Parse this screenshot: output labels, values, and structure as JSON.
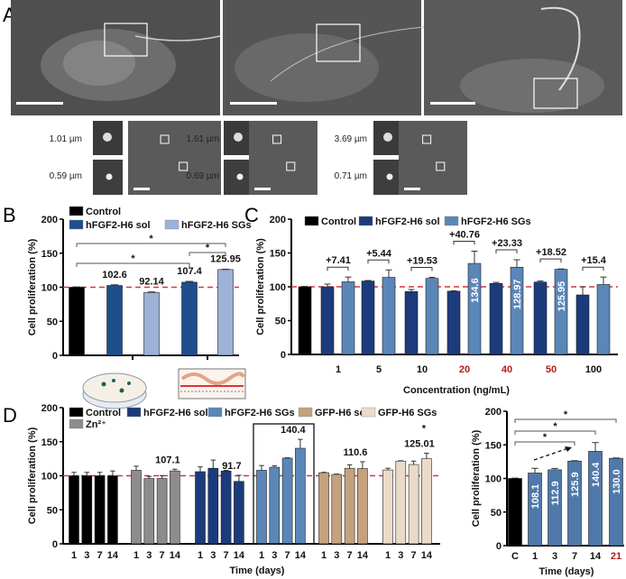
{
  "panel_labels": {
    "a": "A",
    "b": "B",
    "c": "C",
    "d": "D"
  },
  "panel_a": {
    "insets": [
      {
        "top": "1.01 µm",
        "bottom": "0.59 µm"
      },
      {
        "top": "1.61 µm",
        "bottom": "0.69 µm"
      },
      {
        "top": "3.69 µm",
        "bottom": "0.71 µm"
      }
    ]
  },
  "colors": {
    "reference_line": "#d9363e",
    "highlight_label": "#b01c1c"
  },
  "chart_data": [
    {
      "type": "bar",
      "panel": "B",
      "title": "",
      "xlabel": "",
      "ylabel": "Cell proliferation (%)",
      "ylim": [
        0,
        200
      ],
      "yticks": [
        "0",
        "50",
        "100",
        "150",
        "200"
      ],
      "reference_line": 100,
      "legend": [
        {
          "label": "Control",
          "color": "#000000"
        },
        {
          "label": "hFGF2-H6 sol",
          "color": "#1f4e8c"
        },
        {
          "label": "hFGF2-H6 SGs",
          "color": "#9db2d6"
        }
      ],
      "bars": [
        {
          "series": "Control",
          "value": 100,
          "error": 0.5,
          "label": ""
        },
        {
          "series": "hFGF2-H6 sol",
          "value": 102.6,
          "error": 1,
          "label": "102.6"
        },
        {
          "series": "hFGF2-H6 SGs",
          "value": 92.14,
          "error": 1,
          "label": "92.14"
        },
        {
          "series": "hFGF2-H6 sol",
          "value": 107.4,
          "error": 1.2,
          "label": "107.4"
        },
        {
          "series": "hFGF2-H6 SGs",
          "value": 125.95,
          "error": 0.5,
          "label": "125.95"
        }
      ],
      "categories": [],
      "significance": [
        {
          "from": 0,
          "to": 3,
          "text": "*"
        },
        {
          "from": 0,
          "to": 4,
          "text": "*"
        },
        {
          "from": 3,
          "to": 4,
          "text": "*"
        }
      ]
    },
    {
      "type": "bar",
      "panel": "C",
      "xlabel": "Concentration (ng/mL)",
      "ylabel": "Cell proliferation (%)",
      "ylim": [
        0,
        200
      ],
      "yticks": [
        "0",
        "50",
        "100",
        "150",
        "200"
      ],
      "reference_line": 100,
      "legend": [
        {
          "label": "Control",
          "color": "#000000"
        },
        {
          "label": "hFGF2-H6 sol",
          "color": "#1b3b7c"
        },
        {
          "label": "hFGF2-H6 SGs",
          "color": "#5b86b8"
        }
      ],
      "categories": [
        {
          "label": "1",
          "highlight": false
        },
        {
          "label": "5",
          "highlight": false
        },
        {
          "label": "10",
          "highlight": false
        },
        {
          "label": "20",
          "highlight": true
        },
        {
          "label": "40",
          "highlight": true
        },
        {
          "label": "50",
          "highlight": true
        },
        {
          "label": "100",
          "highlight": false
        }
      ],
      "bars": [
        {
          "series": "Control",
          "value": 100,
          "error": 0.5,
          "label": ""
        },
        {
          "series": "hFGF2-H6 sol",
          "value": 100,
          "error": 4,
          "label": ""
        },
        {
          "series": "hFGF2-H6 SGs",
          "value": 107.4,
          "error": 7,
          "label": ""
        },
        {
          "series": "hFGF2-H6 sol",
          "value": 108.5,
          "error": 0.8,
          "label": ""
        },
        {
          "series": "hFGF2-H6 SGs",
          "value": 114,
          "error": 11,
          "label": ""
        },
        {
          "series": "hFGF2-H6 sol",
          "value": 93,
          "error": 3,
          "label": ""
        },
        {
          "series": "hFGF2-H6 SGs",
          "value": 112.5,
          "error": 1.5,
          "label": ""
        },
        {
          "series": "hFGF2-H6 sol",
          "value": 93.5,
          "error": 0.5,
          "label": ""
        },
        {
          "series": "hFGF2-H6 SGs",
          "value": 134.6,
          "error": 18,
          "label": "134.6"
        },
        {
          "series": "hFGF2-H6 sol",
          "value": 105,
          "error": 1.5,
          "label": ""
        },
        {
          "series": "hFGF2-H6 SGs",
          "value": 128.97,
          "error": 11,
          "label": "128.97"
        },
        {
          "series": "hFGF2-H6 sol",
          "value": 107,
          "error": 1.5,
          "label": ""
        },
        {
          "series": "hFGF2-H6 SGs",
          "value": 125.95,
          "error": 0.5,
          "label": "125.95"
        },
        {
          "series": "hFGF2-H6 sol",
          "value": 88,
          "error": 12,
          "label": ""
        },
        {
          "series": "hFGF2-H6 SGs",
          "value": 103.4,
          "error": 11,
          "label": ""
        }
      ],
      "differences": [
        "+7.41",
        "+5.44",
        "+19.53",
        "+40.76",
        "+23.33",
        "+18.52",
        "+15.4"
      ]
    },
    {
      "type": "bar",
      "panel": "D",
      "xlabel": "Time (days)",
      "ylabel": "Cell proliferation (%)",
      "ylim": [
        0,
        200
      ],
      "yticks": [
        "0",
        "50",
        "100",
        "150",
        "200"
      ],
      "reference_line": 100,
      "legend": [
        {
          "label": "Control",
          "color": "#000000"
        },
        {
          "label": "hFGF2-H6 sol",
          "color": "#1b3b7c"
        },
        {
          "label": "hFGF2-H6 SGs",
          "color": "#5b86b8"
        },
        {
          "label": "GFP-H6 sol",
          "color": "#c4a27f"
        },
        {
          "label": "GFP-H6 SGs",
          "color": "#eadbc8"
        },
        {
          "label": "Zn²⁺",
          "color": "#8c8c8c"
        }
      ],
      "groups": [
        {
          "series": "Control",
          "days": [
            "1",
            "3",
            "7",
            "14"
          ],
          "values": [
            100,
            100,
            100,
            100
          ],
          "errors": [
            5,
            5,
            5,
            7
          ],
          "labels": [
            "",
            "",
            "",
            ""
          ]
        },
        {
          "series": "Zn²⁺",
          "days": [
            "1",
            "3",
            "7",
            "14"
          ],
          "values": [
            108,
            96,
            96,
            107.1
          ],
          "errors": [
            6,
            3,
            4,
            2.5
          ],
          "labels": [
            "",
            "",
            "",
            "107.1"
          ]
        },
        {
          "series": "hFGF2-H6 sol",
          "days": [
            "1",
            "3",
            "7",
            "14"
          ],
          "values": [
            106,
            111,
            107,
            91.7
          ],
          "errors": [
            7,
            12,
            1,
            9
          ],
          "labels": [
            "",
            "",
            "",
            "91.7"
          ]
        },
        {
          "series": "hFGF2-H6 SGs",
          "days": [
            "1",
            "3",
            "7",
            "14"
          ],
          "values": [
            108,
            112.5,
            125.9,
            140.4
          ],
          "errors": [
            7,
            2,
            0.5,
            13
          ],
          "labels": [
            "",
            "",
            "",
            "140.4"
          ]
        },
        {
          "series": "GFP-H6 sol",
          "days": [
            "1",
            "3",
            "7",
            "14"
          ],
          "values": [
            104.5,
            102,
            111,
            110.6
          ],
          "errors": [
            0.5,
            0.5,
            5,
            10
          ],
          "labels": [
            "",
            "",
            "",
            "110.6"
          ]
        },
        {
          "series": "GFP-H6 SGs",
          "days": [
            "1",
            "3",
            "7",
            "14"
          ],
          "values": [
            108.5,
            121.5,
            116.5,
            125.01
          ],
          "errors": [
            2.5,
            0.5,
            5,
            8
          ],
          "labels": [
            "",
            "",
            "",
            "125.01"
          ]
        }
      ],
      "highlighted_group": "hFGF2-H6 SGs",
      "significance_marker": {
        "group": 5,
        "bar": 3,
        "text": "*"
      }
    },
    {
      "type": "bar",
      "panel": "D-right",
      "xlabel": "Time (days)",
      "ylabel": "Cell proliferation (%)",
      "ylim": [
        0,
        200
      ],
      "yticks": [
        "0",
        "50",
        "100",
        "150",
        "200"
      ],
      "categories": [
        {
          "label": "C",
          "highlight": false
        },
        {
          "label": "1",
          "highlight": false
        },
        {
          "label": "3",
          "highlight": false
        },
        {
          "label": "7",
          "highlight": false
        },
        {
          "label": "14",
          "highlight": false
        },
        {
          "label": "21",
          "highlight": true
        }
      ],
      "bars": [
        {
          "series": "Control",
          "value": 100,
          "error": 0.5,
          "label": "",
          "color": "#000000"
        },
        {
          "series": "hFGF2-H6 SGs",
          "value": 108.1,
          "error": 7,
          "label": "108.1",
          "color": "#4f79ab"
        },
        {
          "series": "hFGF2-H6 SGs",
          "value": 112.9,
          "error": 2,
          "label": "112.9",
          "color": "#4f79ab"
        },
        {
          "series": "hFGF2-H6 SGs",
          "value": 125.9,
          "error": 0.5,
          "label": "125.9",
          "color": "#4f79ab"
        },
        {
          "series": "hFGF2-H6 SGs",
          "value": 140.4,
          "error": 13,
          "label": "140.4",
          "color": "#4f79ab"
        },
        {
          "series": "hFGF2-H6 SGs",
          "value": 130.0,
          "error": 0.5,
          "label": "130.0",
          "color": "#4f79ab"
        }
      ],
      "significance": [
        {
          "from": 0,
          "to": 3,
          "text": "*"
        },
        {
          "from": 0,
          "to": 4,
          "text": "*"
        },
        {
          "from": 0,
          "to": 5,
          "text": "*"
        }
      ],
      "trend_arrow": {
        "from": 1,
        "to": 3
      }
    }
  ]
}
